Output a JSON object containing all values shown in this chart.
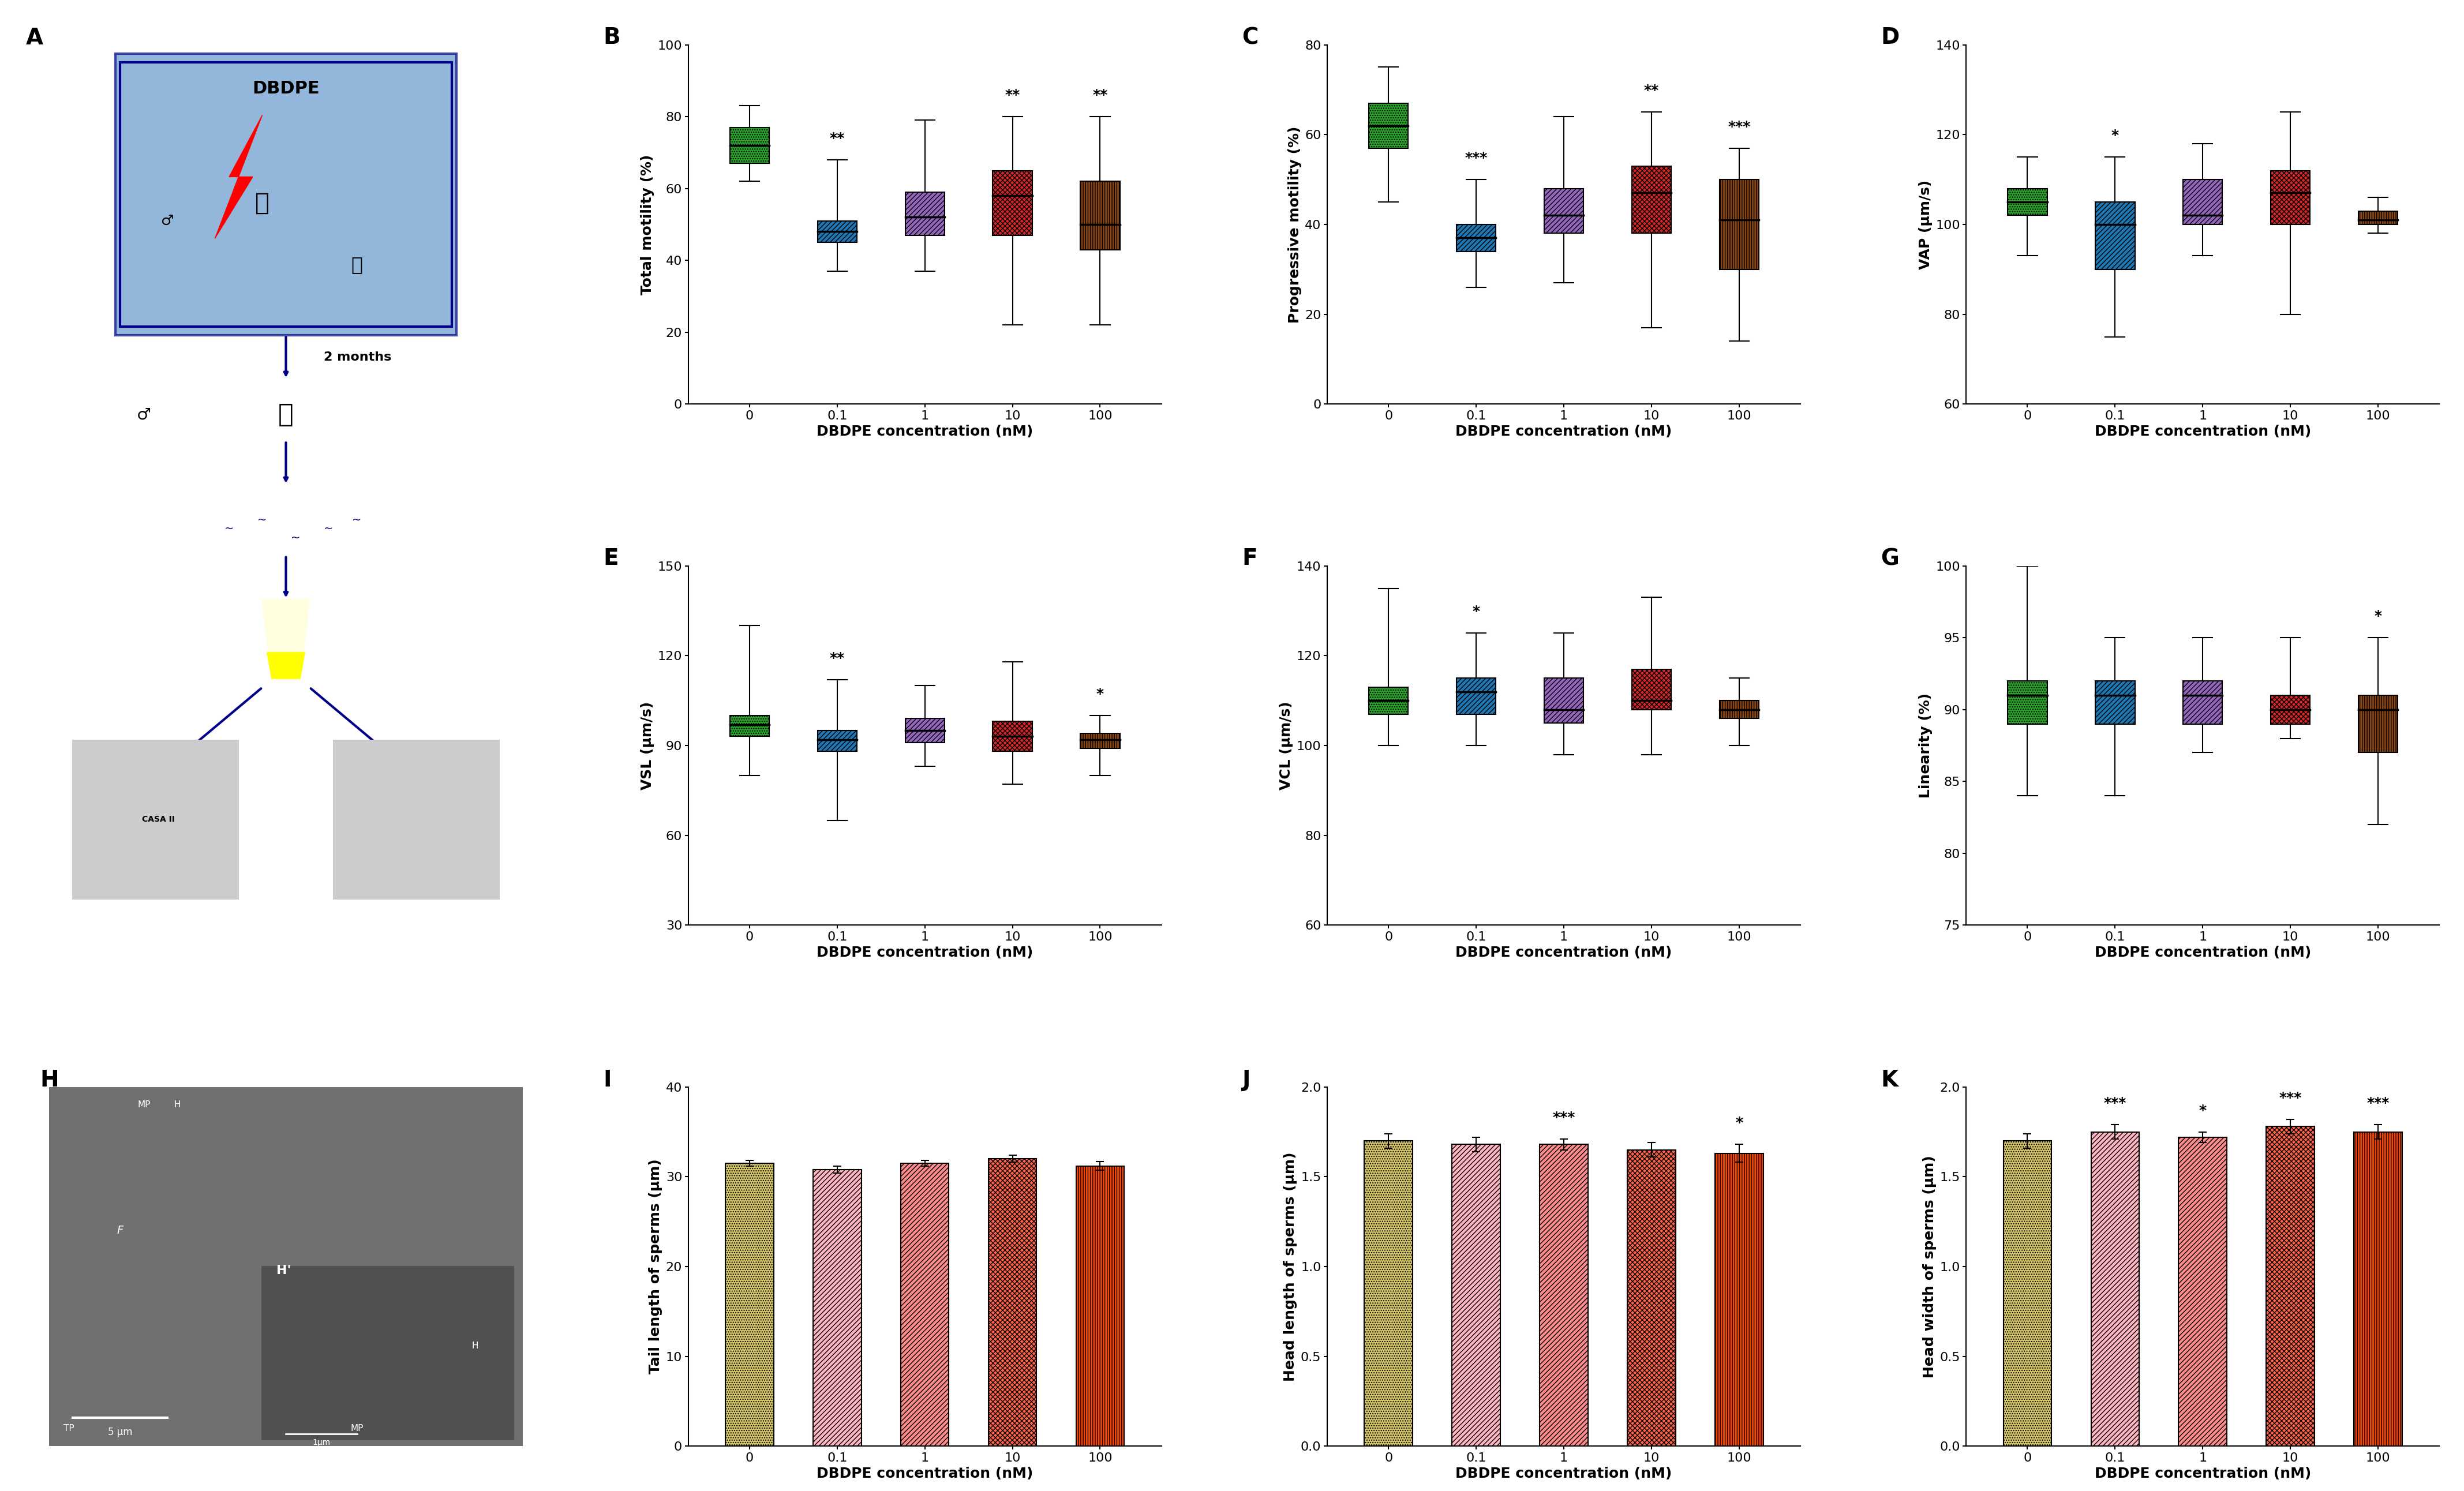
{
  "concentrations": [
    "0",
    "0.1",
    "1",
    "10",
    "100"
  ],
  "box_colors": [
    "#2ca02c",
    "#1f77b4",
    "#9467bd",
    "#d62728",
    "#8B4513"
  ],
  "box_B": {
    "medians": [
      72,
      48,
      52,
      58,
      50
    ],
    "q1": [
      67,
      45,
      47,
      47,
      43
    ],
    "q3": [
      77,
      51,
      59,
      65,
      62
    ],
    "whislo": [
      62,
      37,
      37,
      22,
      22
    ],
    "whishi": [
      83,
      68,
      79,
      80,
      80
    ],
    "sig": [
      "",
      "**",
      "",
      "**",
      "**"
    ]
  },
  "box_C": {
    "medians": [
      62,
      37,
      42,
      47,
      41
    ],
    "q1": [
      57,
      34,
      38,
      38,
      30
    ],
    "q3": [
      67,
      40,
      48,
      53,
      50
    ],
    "whislo": [
      45,
      26,
      27,
      17,
      14
    ],
    "whishi": [
      75,
      50,
      64,
      65,
      57
    ],
    "sig": [
      "",
      "***",
      "",
      "**",
      "***"
    ]
  },
  "box_D": {
    "medians": [
      105,
      100,
      102,
      107,
      101
    ],
    "q1": [
      102,
      90,
      100,
      100,
      100
    ],
    "q3": [
      108,
      105,
      110,
      112,
      103
    ],
    "whislo": [
      93,
      75,
      93,
      80,
      98
    ],
    "whishi": [
      115,
      115,
      118,
      125,
      106
    ],
    "sig": [
      "",
      "*",
      "",
      "",
      ""
    ]
  },
  "box_E": {
    "medians": [
      97,
      92,
      95,
      93,
      92
    ],
    "q1": [
      93,
      88,
      91,
      88,
      89
    ],
    "q3": [
      100,
      95,
      99,
      98,
      94
    ],
    "whislo": [
      80,
      65,
      83,
      77,
      80
    ],
    "whishi": [
      130,
      112,
      110,
      118,
      100
    ],
    "sig": [
      "",
      "**",
      "",
      "",
      "*"
    ]
  },
  "box_F": {
    "medians": [
      110,
      112,
      108,
      110,
      108
    ],
    "q1": [
      107,
      107,
      105,
      108,
      106
    ],
    "q3": [
      113,
      115,
      115,
      117,
      110
    ],
    "whislo": [
      100,
      100,
      98,
      98,
      100
    ],
    "whishi": [
      135,
      125,
      125,
      133,
      115
    ],
    "sig": [
      "",
      "*",
      "",
      "",
      ""
    ]
  },
  "box_G": {
    "medians": [
      91,
      91,
      91,
      90,
      90
    ],
    "q1": [
      89,
      89,
      89,
      89,
      87
    ],
    "q3": [
      92,
      92,
      92,
      91,
      91
    ],
    "whislo": [
      84,
      84,
      87,
      88,
      82
    ],
    "whishi": [
      100,
      95,
      95,
      95,
      95
    ],
    "sig": [
      "",
      "",
      "",
      "",
      "*"
    ]
  },
  "bar_I": {
    "values": [
      31.5,
      30.8,
      31.5,
      32.0,
      31.2
    ],
    "errors": [
      0.3,
      0.4,
      0.3,
      0.4,
      0.5
    ],
    "colors": [
      "#D4C56A",
      "#FFB6C1",
      "#FF8C8C",
      "#FF6347",
      "#FF4500"
    ]
  },
  "bar_J": {
    "values": [
      1.7,
      1.68,
      1.68,
      1.65,
      1.63
    ],
    "errors": [
      0.04,
      0.04,
      0.03,
      0.04,
      0.05
    ],
    "colors": [
      "#D4C56A",
      "#FFB6C1",
      "#FF8C8C",
      "#FF6347",
      "#FF4500"
    ],
    "sig": [
      "",
      "",
      "***",
      "",
      "*"
    ]
  },
  "bar_K": {
    "values": [
      1.7,
      1.75,
      1.72,
      1.78,
      1.75
    ],
    "errors": [
      0.04,
      0.04,
      0.03,
      0.04,
      0.04
    ],
    "colors": [
      "#D4C56A",
      "#FFB6C1",
      "#FF8C8C",
      "#FF6347",
      "#FF4500"
    ],
    "sig": [
      "",
      "***",
      "*",
      "***",
      "***"
    ]
  },
  "panel_labels_fontsize": 28,
  "axis_label_fontsize": 18,
  "tick_fontsize": 16,
  "sig_fontsize": 18
}
